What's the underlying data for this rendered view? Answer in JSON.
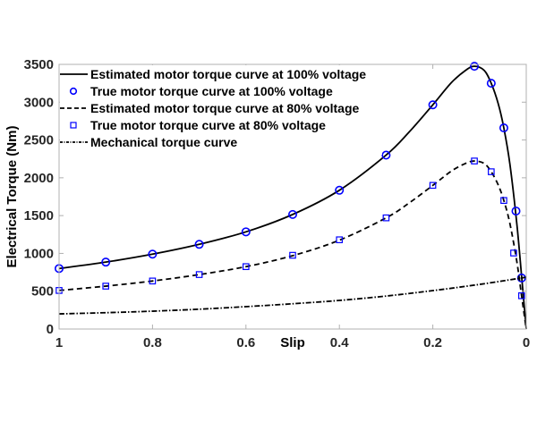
{
  "chart_data": {
    "type": "line",
    "title": "",
    "xlabel": "Slip",
    "ylabel": "Electrical Torque (Nm)",
    "xlim": [
      1,
      0
    ],
    "ylim": [
      0,
      3500
    ],
    "x_reversed": true,
    "grid": false,
    "legend_position": "top-left",
    "x_ticks": [
      1,
      0.8,
      0.6,
      0.4,
      0.2,
      0
    ],
    "x_tick_labels": [
      "1",
      "0.8",
      "0.6",
      "0.4",
      "0.2",
      "0"
    ],
    "y_ticks": [
      0,
      500,
      1000,
      1500,
      2000,
      2500,
      3000,
      3500
    ],
    "y_tick_labels": [
      "0",
      "500",
      "1000",
      "1500",
      "2000",
      "2500",
      "3000",
      "3500"
    ],
    "series": [
      {
        "name": "Estimated motor torque curve at 100% voltage",
        "style": "solid",
        "color": "#000000",
        "x": [
          1,
          0.9,
          0.8,
          0.7,
          0.6,
          0.5,
          0.4,
          0.3,
          0.25,
          0.2,
          0.16,
          0.13,
          0.111,
          0.09,
          0.075,
          0.06,
          0.048,
          0.035,
          0.02,
          0.01,
          0
        ],
        "y": [
          800,
          885,
          990,
          1120,
          1285,
          1515,
          1835,
          2300,
          2610,
          2965,
          3260,
          3420,
          3475,
          3420,
          3250,
          2980,
          2660,
          2180,
          1380,
          700,
          0
        ]
      },
      {
        "name": "True motor torque curve at 100% voltage",
        "style": "circle",
        "color": "#0000ff",
        "x": [
          1,
          0.9,
          0.8,
          0.7,
          0.6,
          0.5,
          0.4,
          0.3,
          0.2,
          0.111,
          0.075,
          0.048,
          0.022,
          0.01
        ],
        "y": [
          800,
          885,
          990,
          1120,
          1285,
          1515,
          1835,
          2300,
          2965,
          3475,
          3250,
          2660,
          1560,
          675
        ]
      },
      {
        "name": "Estimated motor torque curve at 80% voltage",
        "style": "dashed",
        "color": "#000000",
        "x": [
          1,
          0.9,
          0.8,
          0.7,
          0.6,
          0.5,
          0.4,
          0.3,
          0.25,
          0.2,
          0.16,
          0.13,
          0.111,
          0.09,
          0.075,
          0.06,
          0.048,
          0.035,
          0.02,
          0.01,
          0
        ],
        "y": [
          510,
          567,
          635,
          720,
          825,
          970,
          1175,
          1470,
          1670,
          1900,
          2090,
          2190,
          2222,
          2190,
          2080,
          1905,
          1700,
          1395,
          885,
          440,
          0
        ]
      },
      {
        "name": "True motor torque curve at 80% voltage",
        "style": "square",
        "color": "#0000ff",
        "x": [
          1,
          0.9,
          0.8,
          0.7,
          0.6,
          0.5,
          0.4,
          0.3,
          0.2,
          0.111,
          0.075,
          0.048,
          0.027,
          0.01
        ],
        "y": [
          510,
          567,
          635,
          720,
          825,
          975,
          1180,
          1470,
          1900,
          2222,
          2080,
          1700,
          1005,
          440
        ]
      },
      {
        "name": "Mechanical torque curve",
        "style": "dashdot",
        "color": "#000000",
        "x": [
          1,
          0.9,
          0.8,
          0.7,
          0.6,
          0.5,
          0.4,
          0.3,
          0.2,
          0.1,
          0.01,
          0
        ],
        "y": [
          200,
          216,
          236,
          262,
          296,
          334,
          378,
          436,
          508,
          590,
          675,
          685
        ]
      }
    ]
  }
}
